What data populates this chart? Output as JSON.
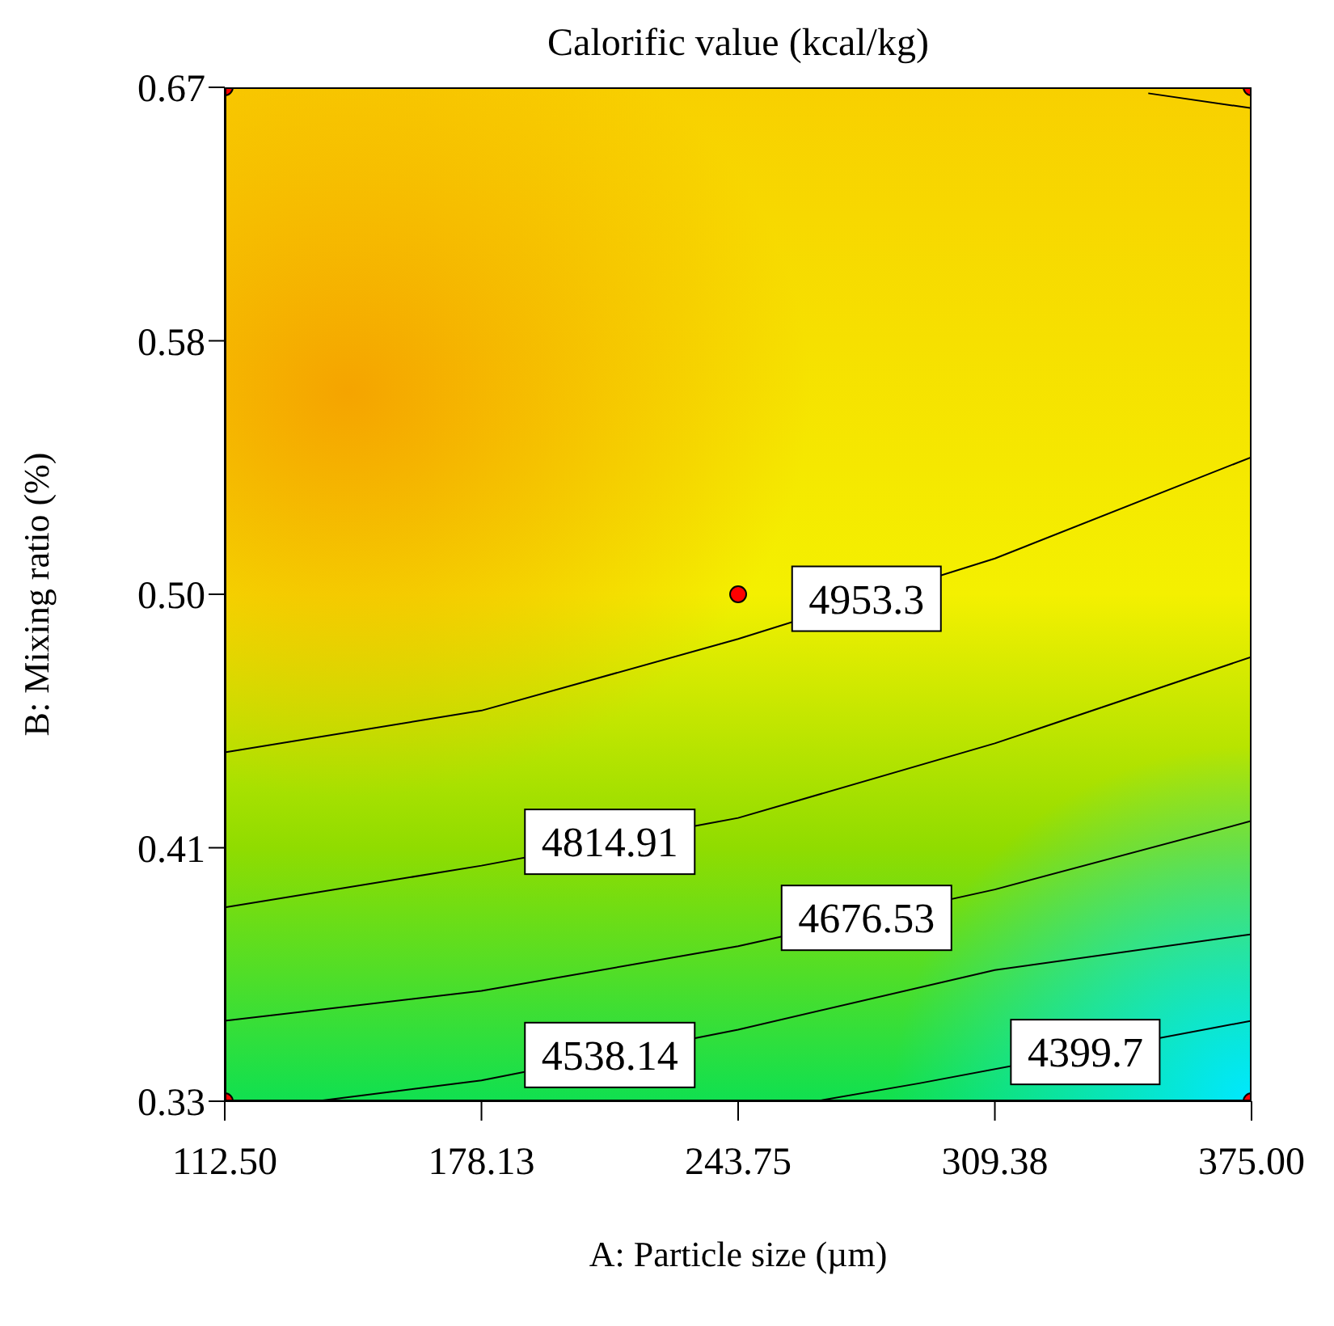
{
  "chart_data": {
    "type": "line",
    "title": "Calorific value (kcal/kg)",
    "xlabel": "A: Particle size (µm)",
    "ylabel": "B: Mixing ratio (%)",
    "xlim": [
      112.5,
      375
    ],
    "xticks": [
      {
        "value": 112.5,
        "label": "112.50"
      },
      {
        "value": 178.13,
        "label": "178.13"
      },
      {
        "value": 243.75,
        "label": "243.75"
      },
      {
        "value": 309.38,
        "label": "309.38"
      },
      {
        "value": 375,
        "label": "375.00"
      }
    ],
    "ylim": [
      0.33,
      0.67
    ],
    "yticks": [
      0.33,
      {
        "value": 0.415,
        "label": "0.41"
      },
      {
        "value": 0.5,
        "label": "0.50"
      },
      {
        "value": 0.585,
        "label": "0.58"
      },
      0.67
    ],
    "grid": false,
    "legend": false,
    "series": [
      {
        "name": "4953.3",
        "color": "#000000",
        "x": [
          112.5,
          178.13,
          243.75,
          309.38,
          375
        ],
        "values": [
          0.447,
          0.461,
          0.485,
          0.512,
          0.546
        ]
      },
      {
        "name": "4814.91",
        "color": "#000000",
        "x": [
          112.5,
          178.13,
          243.75,
          309.38,
          375
        ],
        "values": [
          0.395,
          0.409,
          0.425,
          0.45,
          0.479
        ]
      },
      {
        "name": "4676.53",
        "color": "#000000",
        "x": [
          112.5,
          178.13,
          243.75,
          309.38,
          375
        ],
        "values": [
          0.357,
          0.367,
          0.382,
          0.401,
          0.424
        ]
      },
      {
        "name": "4538.14",
        "color": "#000000",
        "x": [
          135.9,
          178.13,
          243.75,
          309.38,
          375
        ],
        "values": [
          0.33,
          0.337,
          0.354,
          0.374,
          0.386
        ]
      },
      {
        "name": "4399.7",
        "color": "#000000",
        "x": [
          263.6,
          290,
          375
        ],
        "values": [
          0.33,
          0.336,
          0.357
        ]
      },
      {
        "color": "#000000",
        "x": [
          348.6,
          375
        ],
        "values": [
          0.668,
          0.663
        ]
      },
      {
        "type": "scatter",
        "color": "#ff0000",
        "marker": "circle",
        "x": [
          112.5,
          375,
          112.5,
          375,
          243.75
        ],
        "values": [
          0.33,
          0.33,
          0.67,
          0.67,
          0.5
        ]
      }
    ]
  }
}
